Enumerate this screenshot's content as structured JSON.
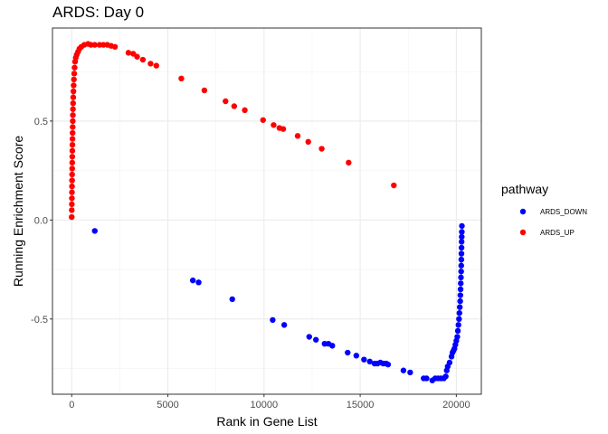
{
  "chart_data": {
    "type": "scatter",
    "title": "ARDS: Day 0",
    "xlabel": "Rank in Gene List",
    "ylabel": "Running Enrichment Score",
    "xlim": [
      -1000,
      21300
    ],
    "ylim": [
      -0.88,
      0.97
    ],
    "x_ticks": [
      0,
      5000,
      10000,
      15000,
      20000
    ],
    "x_tick_labels": [
      "0",
      "5000",
      "10000",
      "15000",
      "20000"
    ],
    "y_ticks": [
      -0.5,
      0.0,
      0.5
    ],
    "y_tick_labels": [
      "-0.5",
      "0.0",
      "0.5"
    ],
    "grid": true,
    "legend": {
      "title": "pathway",
      "position": "right"
    },
    "series": [
      {
        "name": "ARDS_DOWN",
        "color": "#0000ff",
        "points": [
          [
            1200,
            -0.055
          ],
          [
            6300,
            -0.305
          ],
          [
            6600,
            -0.315
          ],
          [
            8350,
            -0.4
          ],
          [
            10450,
            -0.505
          ],
          [
            11050,
            -0.53
          ],
          [
            12350,
            -0.59
          ],
          [
            12700,
            -0.605
          ],
          [
            13150,
            -0.625
          ],
          [
            13350,
            -0.625
          ],
          [
            13550,
            -0.635
          ],
          [
            14350,
            -0.67
          ],
          [
            14800,
            -0.685
          ],
          [
            15200,
            -0.705
          ],
          [
            15500,
            -0.715
          ],
          [
            15750,
            -0.725
          ],
          [
            15900,
            -0.725
          ],
          [
            16050,
            -0.72
          ],
          [
            16200,
            -0.725
          ],
          [
            16350,
            -0.725
          ],
          [
            16450,
            -0.73
          ],
          [
            17250,
            -0.76
          ],
          [
            17600,
            -0.77
          ],
          [
            18300,
            -0.8
          ],
          [
            18450,
            -0.8
          ],
          [
            18750,
            -0.81
          ],
          [
            18900,
            -0.8
          ],
          [
            19050,
            -0.8
          ],
          [
            19200,
            -0.8
          ],
          [
            19350,
            -0.8
          ],
          [
            19450,
            -0.79
          ],
          [
            19500,
            -0.76
          ],
          [
            19550,
            -0.74
          ],
          [
            19650,
            -0.72
          ],
          [
            19750,
            -0.69
          ],
          [
            19800,
            -0.67
          ],
          [
            19850,
            -0.66
          ],
          [
            19900,
            -0.65
          ],
          [
            19950,
            -0.63
          ],
          [
            20000,
            -0.61
          ],
          [
            20050,
            -0.59
          ],
          [
            20080,
            -0.56
          ],
          [
            20110,
            -0.53
          ],
          [
            20140,
            -0.5
          ],
          [
            20160,
            -0.47
          ],
          [
            20180,
            -0.44
          ],
          [
            20200,
            -0.41
          ],
          [
            20210,
            -0.38
          ],
          [
            20220,
            -0.35
          ],
          [
            20230,
            -0.32
          ],
          [
            20240,
            -0.29
          ],
          [
            20250,
            -0.26
          ],
          [
            20255,
            -0.23
          ],
          [
            20260,
            -0.2
          ],
          [
            20265,
            -0.17
          ],
          [
            20270,
            -0.14
          ],
          [
            20275,
            -0.11
          ],
          [
            20280,
            -0.085
          ],
          [
            20285,
            -0.06
          ],
          [
            20290,
            -0.03
          ]
        ]
      },
      {
        "name": "ARDS_UP",
        "color": "#ff0000",
        "points": [
          [
            0,
            0.015
          ],
          [
            3,
            0.05
          ],
          [
            6,
            0.08
          ],
          [
            9,
            0.11
          ],
          [
            12,
            0.14
          ],
          [
            15,
            0.17
          ],
          [
            18,
            0.2
          ],
          [
            21,
            0.23
          ],
          [
            24,
            0.26
          ],
          [
            27,
            0.29
          ],
          [
            30,
            0.32
          ],
          [
            33,
            0.35
          ],
          [
            36,
            0.38
          ],
          [
            40,
            0.41
          ],
          [
            45,
            0.44
          ],
          [
            50,
            0.47
          ],
          [
            55,
            0.5
          ],
          [
            60,
            0.53
          ],
          [
            65,
            0.56
          ],
          [
            72,
            0.59
          ],
          [
            80,
            0.62
          ],
          [
            90,
            0.65
          ],
          [
            100,
            0.68
          ],
          [
            115,
            0.71
          ],
          [
            130,
            0.74
          ],
          [
            150,
            0.77
          ],
          [
            175,
            0.8
          ],
          [
            210,
            0.82
          ],
          [
            260,
            0.835
          ],
          [
            330,
            0.85
          ],
          [
            400,
            0.865
          ],
          [
            500,
            0.875
          ],
          [
            650,
            0.885
          ],
          [
            850,
            0.89
          ],
          [
            1000,
            0.885
          ],
          [
            1200,
            0.885
          ],
          [
            1450,
            0.885
          ],
          [
            1650,
            0.885
          ],
          [
            1850,
            0.885
          ],
          [
            2050,
            0.88
          ],
          [
            2250,
            0.875
          ],
          [
            2950,
            0.845
          ],
          [
            3200,
            0.84
          ],
          [
            3400,
            0.825
          ],
          [
            3700,
            0.81
          ],
          [
            4100,
            0.79
          ],
          [
            4400,
            0.78
          ],
          [
            5700,
            0.715
          ],
          [
            6900,
            0.655
          ],
          [
            8000,
            0.6
          ],
          [
            8450,
            0.575
          ],
          [
            9000,
            0.555
          ],
          [
            9950,
            0.505
          ],
          [
            10500,
            0.48
          ],
          [
            10800,
            0.465
          ],
          [
            11000,
            0.46
          ],
          [
            11750,
            0.425
          ],
          [
            12300,
            0.395
          ],
          [
            13000,
            0.36
          ],
          [
            14400,
            0.29
          ],
          [
            16750,
            0.175
          ]
        ]
      }
    ]
  }
}
